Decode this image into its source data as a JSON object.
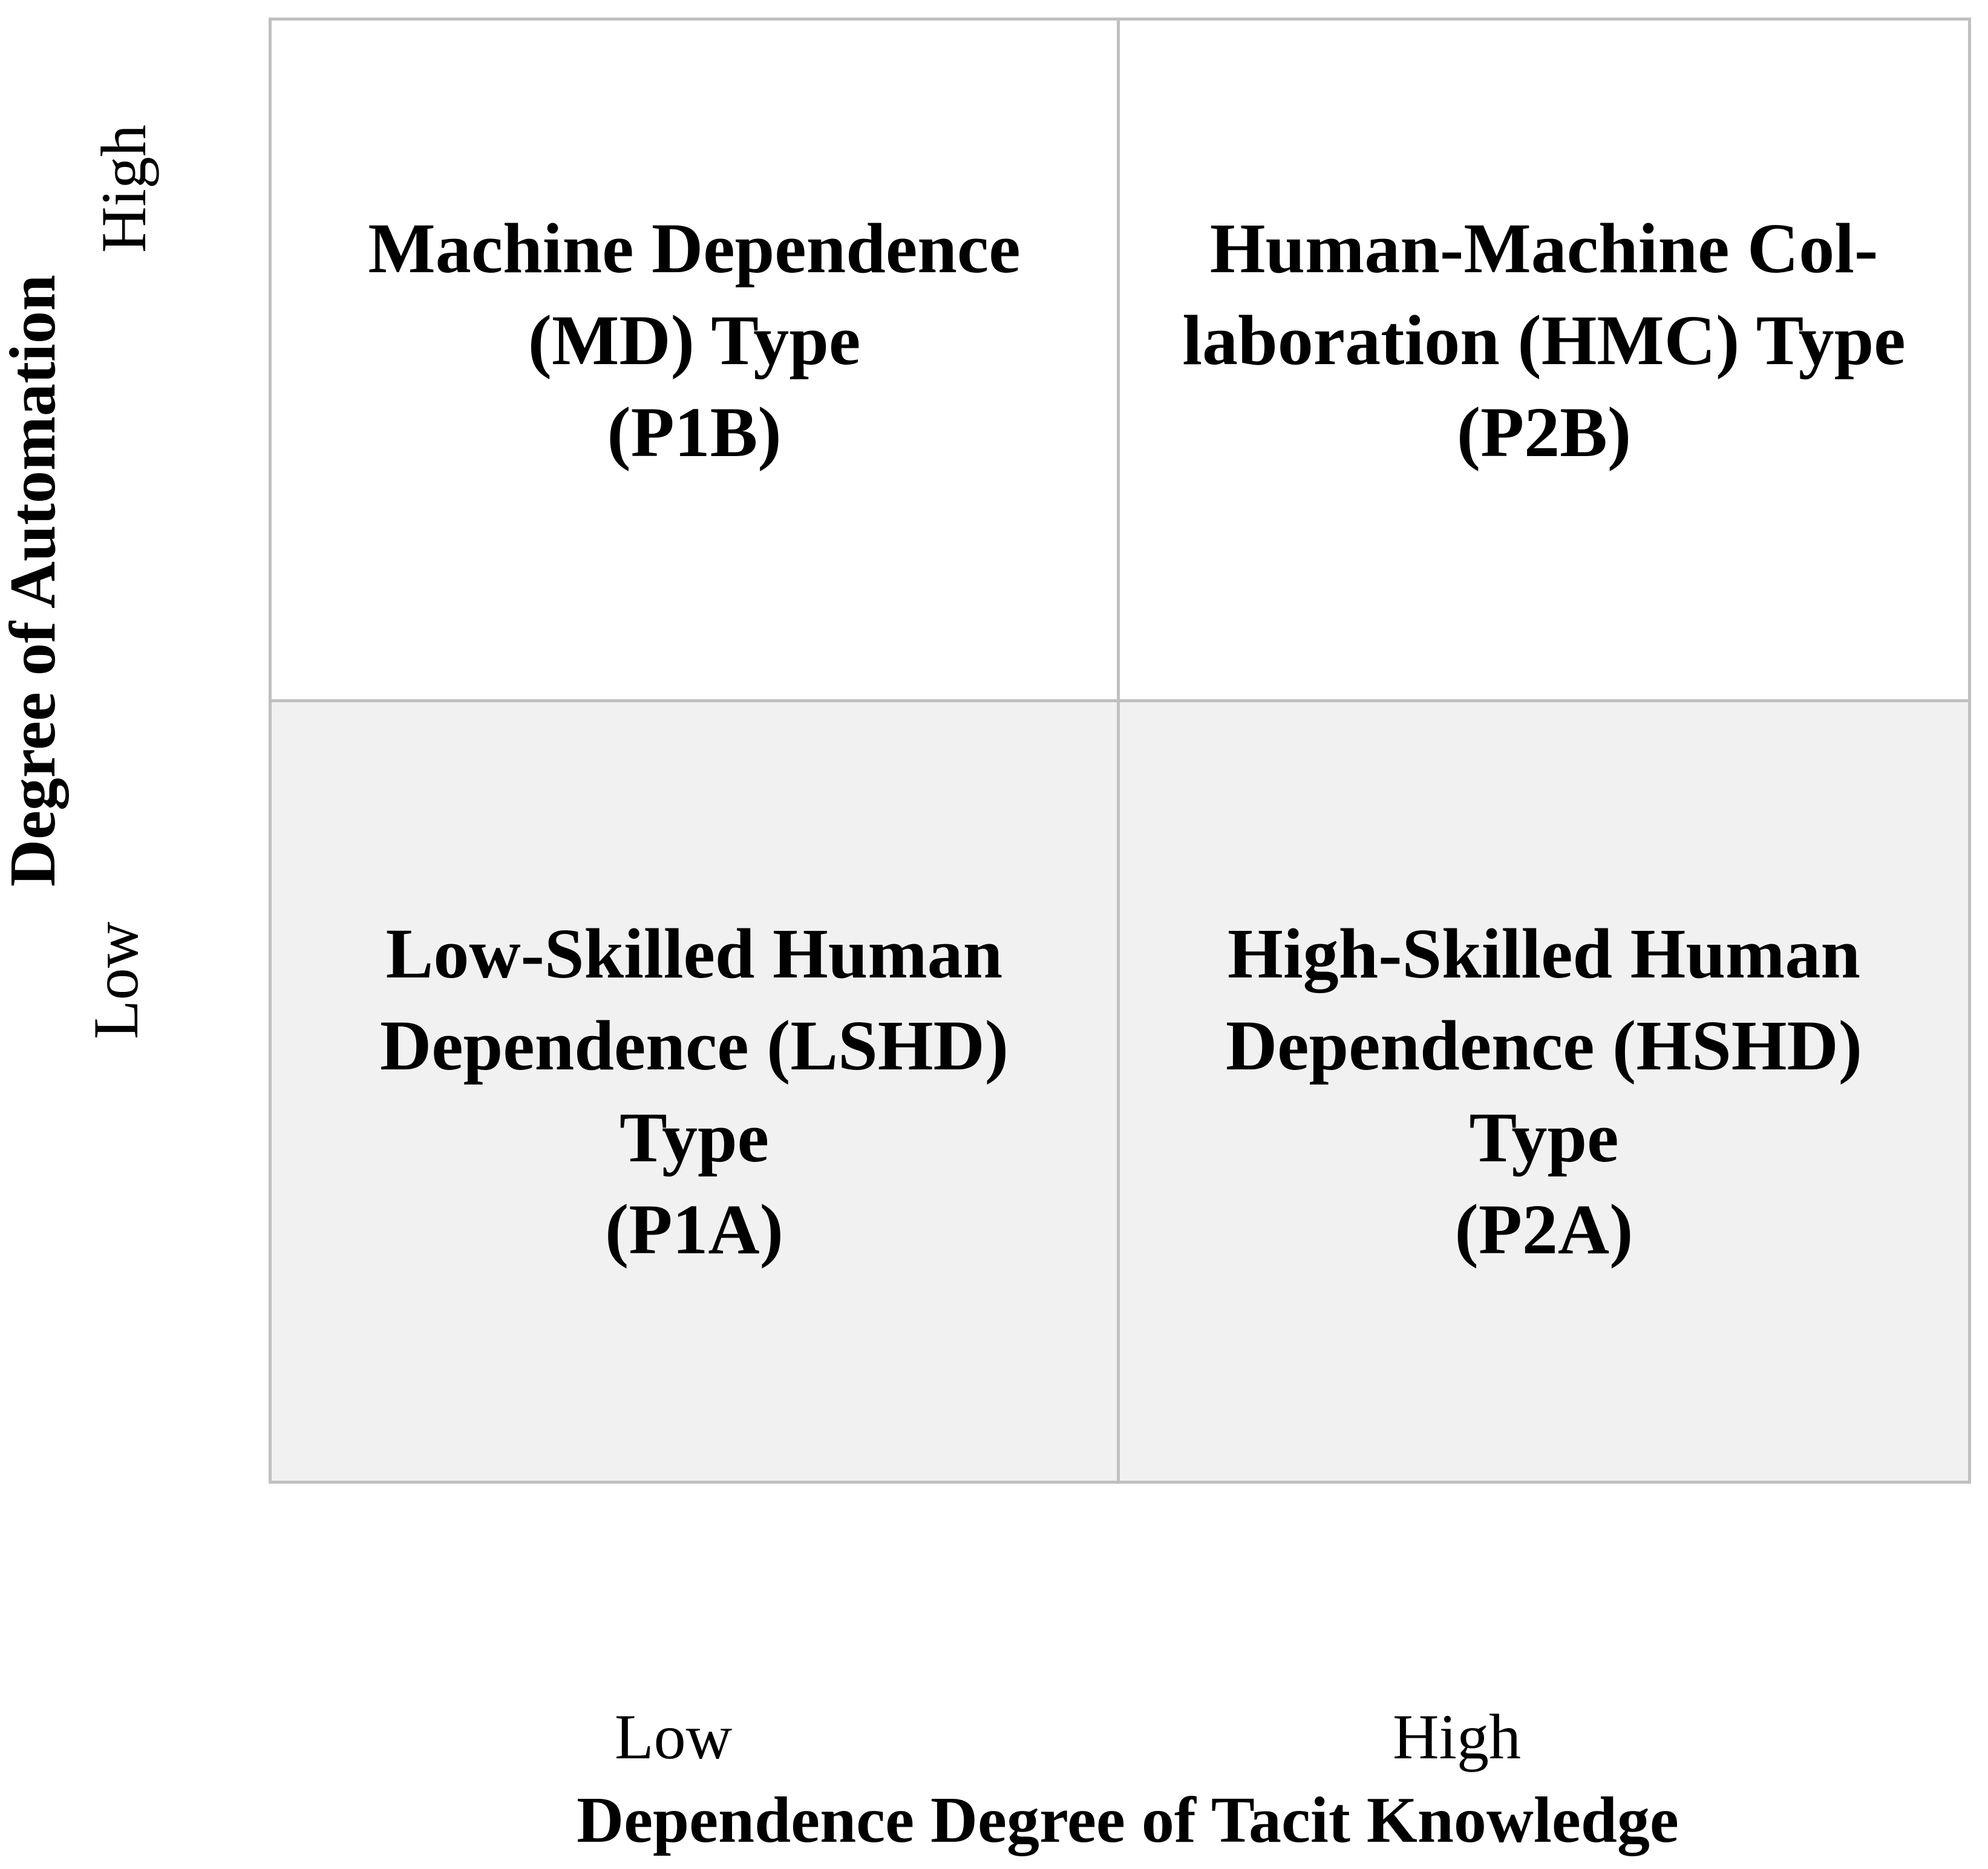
{
  "y_axis": {
    "label": "Degree of Automation",
    "tick_high": "High",
    "tick_low": "Low"
  },
  "x_axis": {
    "label": "Dependence Degree of Tacit Knowledge",
    "tick_low": "Low",
    "tick_high": "High"
  },
  "quadrants": {
    "top_left": {
      "lines": [
        "Machine Dependence",
        "(MD) Type",
        "(P1B)"
      ]
    },
    "top_right": {
      "lines": [
        "Human-Machine Col-",
        "laboration (HMC) Type",
        "(P2B)"
      ]
    },
    "bottom_left": {
      "lines": [
        "Low-Skilled Human",
        "Dependence (LSHD)",
        "Type",
        "(P1A)"
      ]
    },
    "bottom_right": {
      "lines": [
        "High-Skilled Human",
        "Dependence (HSHD)",
        "Type",
        "(P2A)"
      ]
    }
  },
  "colors": {
    "background": "#ffffff",
    "border": "#c0c0c0",
    "shaded_quadrant": "#f1f1f1",
    "text": "#000000"
  }
}
